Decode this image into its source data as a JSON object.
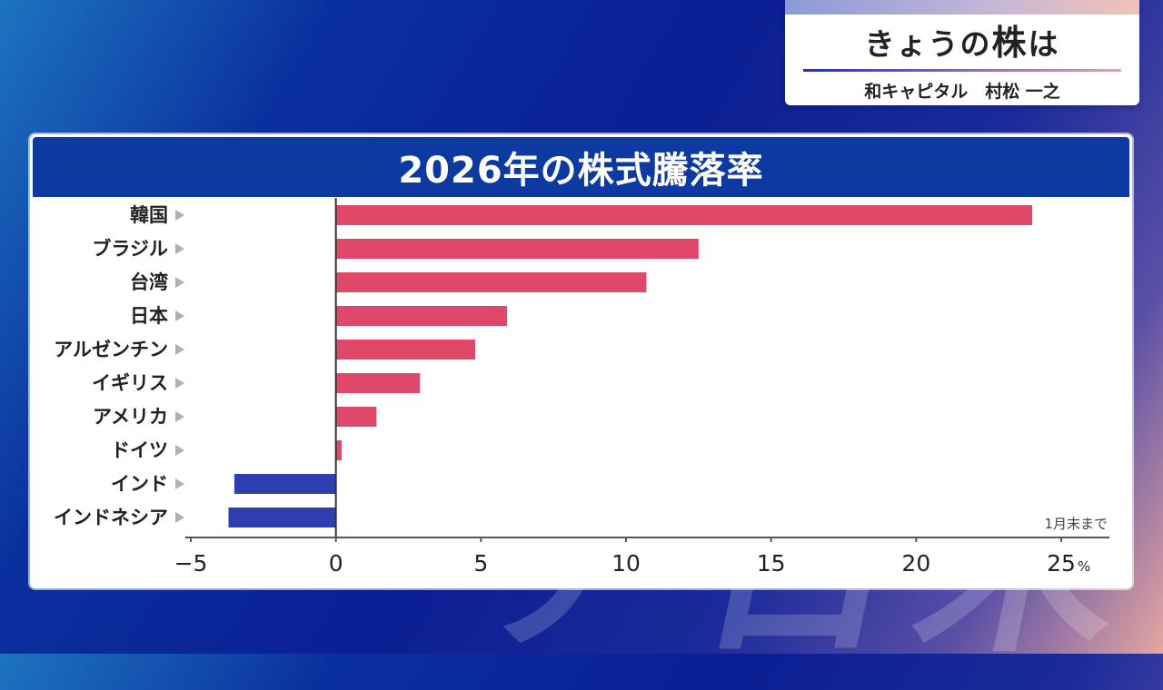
{
  "corner": {
    "title_prefix": "きょうの",
    "title_big": "株",
    "title_suffix": "は",
    "subtitle": "和キャピタル　村松 一之"
  },
  "panel": {
    "title": "2026年の株式騰落率"
  },
  "colors": {
    "positive": "#e0486a",
    "negative": "#2e3db0",
    "header": "#0d3aa0"
  },
  "chart_data": {
    "type": "bar",
    "orientation": "horizontal",
    "title": "2026年の株式騰落率",
    "categories": [
      "韓国",
      "ブラジル",
      "台湾",
      "日本",
      "アルゼンチン",
      "イギリス",
      "アメリカ",
      "ドイツ",
      "インド",
      "インドネシア"
    ],
    "values": [
      24.0,
      12.5,
      10.7,
      5.9,
      4.8,
      2.9,
      1.4,
      0.2,
      -3.5,
      -3.7
    ],
    "xlim": [
      -5,
      25
    ],
    "xticks": [
      -5,
      0,
      5,
      10,
      15,
      20,
      25
    ],
    "xticklabels": [
      "−5",
      "0",
      "5",
      "10",
      "15",
      "20",
      "25"
    ],
    "unit": "%",
    "note": "1月末まで",
    "grid": false
  }
}
